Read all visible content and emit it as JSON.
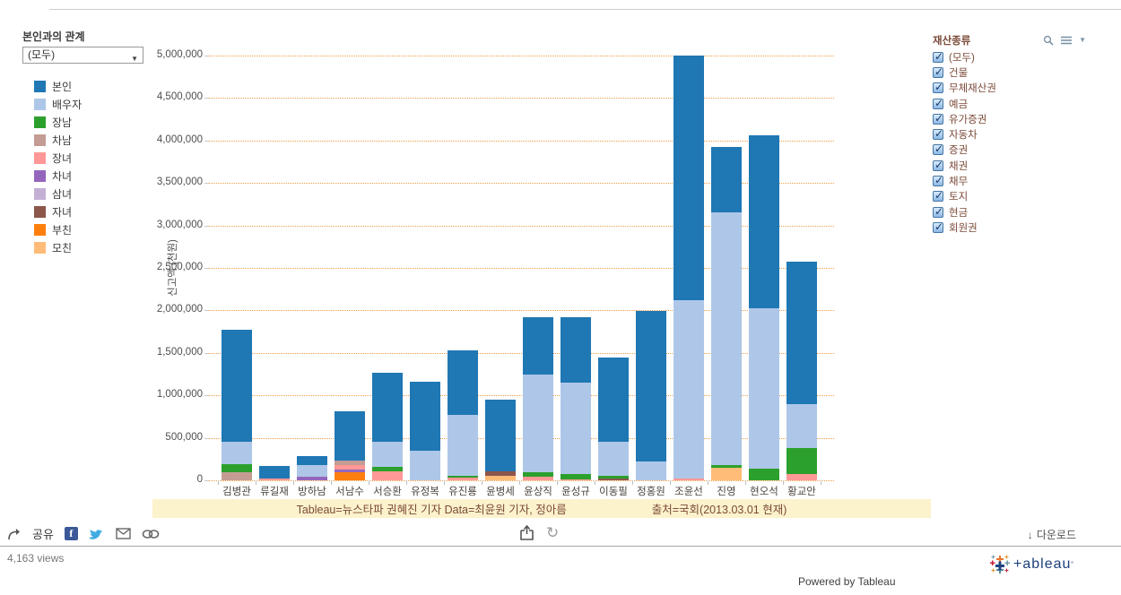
{
  "left_panel": {
    "filter_label": "본인과의 관계",
    "filter_value": "(모두)"
  },
  "legend": {
    "items": [
      {
        "label": "본인",
        "color": "#1f77b4"
      },
      {
        "label": "배우자",
        "color": "#aec7e8"
      },
      {
        "label": "장남",
        "color": "#2ca02c"
      },
      {
        "label": "차남",
        "color": "#c49c94"
      },
      {
        "label": "장녀",
        "color": "#ff9896"
      },
      {
        "label": "차녀",
        "color": "#9467bd"
      },
      {
        "label": "삼녀",
        "color": "#c5b0d5"
      },
      {
        "label": "자녀",
        "color": "#8c564b"
      },
      {
        "label": "부친",
        "color": "#ff7f0e"
      },
      {
        "label": "모친",
        "color": "#ffbb78"
      }
    ]
  },
  "chart_data": {
    "type": "bar",
    "stacked": true,
    "ylabel": "신고액 (천원)",
    "ylim": [
      0,
      5000000
    ],
    "ytick_interval": 500000,
    "ytick_labels": [
      "0",
      "500,000",
      "1,000,000",
      "1,500,000",
      "2,000,000",
      "2,500,000",
      "3,000,000",
      "3,500,000",
      "4,000,000",
      "4,500,000",
      "5,000,000"
    ],
    "grid": "horizontal dotted orange",
    "legend_position": "left",
    "categories": [
      "김병관",
      "류길재",
      "방하남",
      "서남수",
      "서승환",
      "유정복",
      "유진룡",
      "윤병세",
      "윤상직",
      "윤성규",
      "이동필",
      "정홍원",
      "조윤선",
      "진영",
      "현오석",
      "황교안"
    ],
    "series": [
      {
        "name": "본인",
        "color": "#1f77b4",
        "values": [
          1320000,
          140000,
          110000,
          580000,
          820000,
          815000,
          765000,
          835000,
          680000,
          770000,
          1000000,
          1770000,
          2875000,
          775000,
          2035000,
          1680000
        ]
      },
      {
        "name": "배우자",
        "color": "#aec7e8",
        "values": [
          255000,
          0,
          135000,
          0,
          295000,
          350000,
          715000,
          0,
          1155000,
          1080000,
          395000,
          220000,
          2105000,
          2975000,
          1885000,
          510000
        ]
      },
      {
        "name": "장남",
        "color": "#2ca02c",
        "values": [
          105000,
          0,
          0,
          0,
          45000,
          0,
          25000,
          0,
          50000,
          55000,
          35000,
          0,
          0,
          25000,
          140000,
          315000
        ]
      },
      {
        "name": "차남",
        "color": "#c49c94",
        "values": [
          90000,
          0,
          0,
          55000,
          0,
          0,
          0,
          0,
          0,
          0,
          0,
          0,
          0,
          0,
          0,
          0
        ]
      },
      {
        "name": "장녀",
        "color": "#ff9896",
        "values": [
          0,
          25000,
          0,
          55000,
          110000,
          0,
          30000,
          0,
          40000,
          15000,
          0,
          0,
          20000,
          0,
          0,
          70000
        ]
      },
      {
        "name": "차녀",
        "color": "#9467bd",
        "values": [
          0,
          0,
          45000,
          35000,
          0,
          0,
          0,
          0,
          0,
          0,
          0,
          0,
          0,
          0,
          0,
          0
        ]
      },
      {
        "name": "삼녀",
        "color": "#c5b0d5",
        "values": [
          0,
          0,
          0,
          0,
          0,
          0,
          0,
          0,
          0,
          0,
          0,
          0,
          0,
          0,
          0,
          0
        ]
      },
      {
        "name": "자녀",
        "color": "#8c564b",
        "values": [
          0,
          0,
          0,
          0,
          0,
          0,
          0,
          60000,
          0,
          0,
          20000,
          0,
          0,
          0,
          0,
          0
        ]
      },
      {
        "name": "부친",
        "color": "#ff7f0e",
        "values": [
          0,
          0,
          0,
          90000,
          0,
          0,
          0,
          0,
          0,
          0,
          0,
          0,
          0,
          0,
          0,
          0
        ]
      },
      {
        "name": "모친",
        "color": "#ffbb78",
        "values": [
          0,
          0,
          0,
          0,
          0,
          0,
          0,
          50000,
          0,
          0,
          0,
          0,
          0,
          150000,
          0,
          0
        ]
      }
    ]
  },
  "caption": {
    "left": "Tableau=뉴스타파 권혜진 기자 Data=최윤원 기자, 정아름",
    "right": "출처=국회(2013.03.01 현재)"
  },
  "filter_panel": {
    "title": "재산종류",
    "items": [
      {
        "label": "(모두)",
        "checked": true
      },
      {
        "label": "건물",
        "checked": true
      },
      {
        "label": "무체재산권",
        "checked": true
      },
      {
        "label": "예금",
        "checked": true
      },
      {
        "label": "유가증권",
        "checked": true
      },
      {
        "label": "자동차",
        "checked": true
      },
      {
        "label": "증권",
        "checked": true
      },
      {
        "label": "채권",
        "checked": true
      },
      {
        "label": "채무",
        "checked": true
      },
      {
        "label": "토지",
        "checked": true
      },
      {
        "label": "현금",
        "checked": true
      },
      {
        "label": "회원권",
        "checked": true
      }
    ]
  },
  "toolbar": {
    "share_label": "공유",
    "download_label": "다운로드",
    "download_arrow": "↓",
    "refresh_glyph": "↻",
    "views_text": "4,163 views",
    "powered_by": "Powered by Tableau",
    "logo_word": "+ableau"
  },
  "colors": {
    "gridline": "#ee9d45",
    "caption_bg": "#fcf2cc",
    "caption_text": "#7b4a38",
    "brand_navy": "#1b3f7a"
  }
}
